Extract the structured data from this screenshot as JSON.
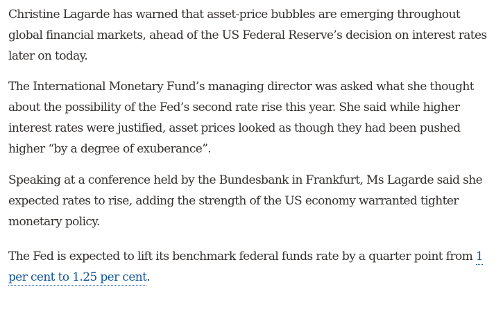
{
  "article": {
    "paragraphs": [
      {
        "lines": [
          "Christine Lagarde has warned that asset-price bubbles are emerging throughout",
          "global financial markets, ahead of the US Federal Reserve’s decision on interest rates",
          "later on today."
        ]
      },
      {
        "lines": [
          "The International Monetary Fund’s managing director was asked what she thought",
          "about the possibility of the Fed’s second rate rise this year. She said while higher",
          "interest rates were justified, asset prices looked as though they had been pushed",
          "higher “by a degree of exuberance”."
        ]
      },
      {
        "lines": [
          "Speaking at a conference held by the Bundesbank in Frankfurt, Ms Lagarde said she",
          "expected rates to rise, adding the strength of the US economy warranted tighter",
          "monetary policy."
        ]
      },
      {
        "line1_text": "The Fed is expected to lift its benchmark federal funds rate by a quarter point from ",
        "link_line1": "1",
        "link_line2": "per cent to 1.25 per cent",
        "trailing": "."
      }
    ]
  },
  "colors": {
    "text": "#33302e",
    "link": "#0f5499",
    "background": "#ffffff"
  }
}
